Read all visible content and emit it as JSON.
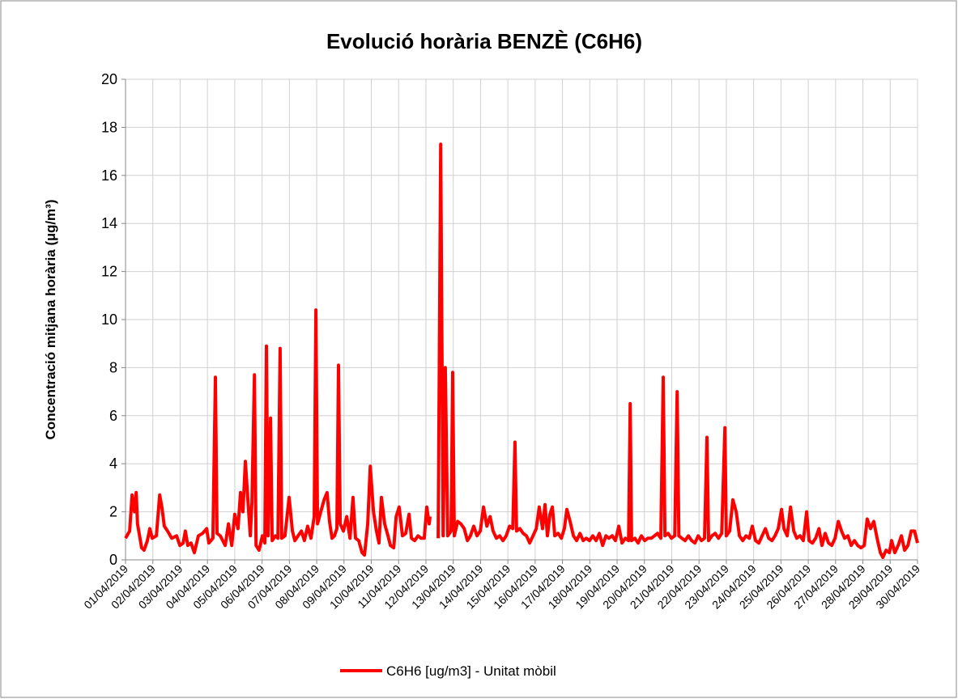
{
  "chart_data": {
    "type": "line",
    "title": "Evolució horària BENZÈ (C6H6)",
    "y_label": "Concentració mitjana horària (µg/m³)",
    "x": [
      1.0,
      1.15,
      1.24,
      1.33,
      1.39,
      1.44,
      1.59,
      1.68,
      1.8,
      1.89,
      1.98,
      2.13,
      2.25,
      2.33,
      2.42,
      2.54,
      2.69,
      2.87,
      2.99,
      3.11,
      3.19,
      3.28,
      3.4,
      3.52,
      3.67,
      3.82,
      3.97,
      4.05,
      4.2,
      4.29,
      4.35,
      4.47,
      4.65,
      4.77,
      4.89,
      5.0,
      5.12,
      5.21,
      5.3,
      5.39,
      5.48,
      5.57,
      5.63,
      5.72,
      5.78,
      5.89,
      6.01,
      6.1,
      6.16,
      6.22,
      6.31,
      6.37,
      6.49,
      6.58,
      6.66,
      6.72,
      6.84,
      6.99,
      7.11,
      7.2,
      7.32,
      7.44,
      7.55,
      7.67,
      7.79,
      7.91,
      7.97,
      8.03,
      8.15,
      8.27,
      8.38,
      8.47,
      8.56,
      8.65,
      8.74,
      8.8,
      8.86,
      8.98,
      9.1,
      9.22,
      9.33,
      9.42,
      9.54,
      9.66,
      9.75,
      9.87,
      9.96,
      10.08,
      10.19,
      10.28,
      10.37,
      10.49,
      10.61,
      10.7,
      10.82,
      10.91,
      11.02,
      11.14,
      11.26,
      11.38,
      11.47,
      11.59,
      11.71,
      11.82,
      11.94,
      12.03,
      12.12,
      12.15,
      12.4,
      12.45,
      12.54,
      12.63,
      12.71,
      12.8,
      12.92,
      12.98,
      13.04,
      13.16,
      13.28,
      13.4,
      13.52,
      13.63,
      13.75,
      13.87,
      13.99,
      14.11,
      14.23,
      14.35,
      14.46,
      14.58,
      14.7,
      14.82,
      14.94,
      15.06,
      15.18,
      15.26,
      15.32,
      15.44,
      15.56,
      15.68,
      15.8,
      15.92,
      16.04,
      16.15,
      16.27,
      16.36,
      16.45,
      16.54,
      16.63,
      16.72,
      16.84,
      16.96,
      17.07,
      17.16,
      17.28,
      17.4,
      17.52,
      17.64,
      17.76,
      17.87,
      17.99,
      18.11,
      18.23,
      18.35,
      18.47,
      18.59,
      18.7,
      18.82,
      18.94,
      19.06,
      19.18,
      19.3,
      19.42,
      19.48,
      19.53,
      19.65,
      19.77,
      19.89,
      20.01,
      20.13,
      20.25,
      20.37,
      20.48,
      20.6,
      20.69,
      20.75,
      20.87,
      20.99,
      21.11,
      21.2,
      21.26,
      21.37,
      21.49,
      21.61,
      21.73,
      21.85,
      21.97,
      22.09,
      22.2,
      22.29,
      22.35,
      22.47,
      22.59,
      22.71,
      22.83,
      22.95,
      23.0,
      23.12,
      23.24,
      23.36,
      23.48,
      23.6,
      23.72,
      23.84,
      23.95,
      24.07,
      24.19,
      24.31,
      24.43,
      24.55,
      24.67,
      24.78,
      24.9,
      25.02,
      25.11,
      25.23,
      25.35,
      25.47,
      25.58,
      25.7,
      25.82,
      25.94,
      26.03,
      26.15,
      26.27,
      26.39,
      26.5,
      26.62,
      26.74,
      26.86,
      26.98,
      27.1,
      27.22,
      27.33,
      27.45,
      27.57,
      27.69,
      27.81,
      27.93,
      28.05,
      28.16,
      28.28,
      28.4,
      28.52,
      28.64,
      28.73,
      28.85,
      28.97,
      29.05,
      29.17,
      29.29,
      29.41,
      29.53,
      29.65,
      29.77,
      29.89,
      30.0
    ],
    "series": [
      {
        "name": "C6H6 [ug/m3] - Unitat mòbil",
        "color": "#ff0000",
        "values": [
          0.9,
          1.2,
          2.7,
          2.0,
          2.8,
          1.5,
          0.5,
          0.4,
          0.8,
          1.3,
          0.9,
          1.0,
          2.7,
          2.2,
          1.4,
          1.2,
          0.9,
          1.0,
          0.6,
          0.7,
          1.2,
          0.6,
          0.7,
          0.3,
          1.0,
          1.1,
          1.3,
          0.7,
          0.9,
          7.6,
          1.1,
          1.0,
          0.6,
          1.5,
          0.6,
          1.9,
          1.3,
          2.8,
          2.0,
          4.1,
          2.5,
          1.0,
          2.4,
          7.7,
          0.6,
          0.4,
          1.0,
          0.7,
          8.9,
          1.0,
          5.9,
          0.8,
          1.0,
          0.9,
          8.8,
          0.9,
          1.0,
          2.6,
          1.2,
          0.8,
          1.0,
          1.2,
          0.8,
          1.4,
          0.9,
          1.8,
          10.4,
          1.5,
          2.0,
          2.5,
          2.8,
          1.6,
          0.9,
          1.0,
          1.3,
          8.1,
          1.5,
          1.2,
          1.8,
          0.9,
          2.6,
          0.9,
          0.8,
          0.3,
          0.2,
          1.5,
          3.9,
          2.0,
          1.2,
          0.7,
          2.6,
          1.5,
          1.0,
          0.6,
          0.5,
          1.8,
          2.2,
          1.0,
          1.1,
          1.9,
          0.9,
          0.8,
          1.0,
          0.9,
          0.9,
          2.2,
          1.5,
          1.8,
          null,
          0.9,
          17.3,
          1.0,
          8.0,
          1.0,
          1.2,
          7.8,
          1.0,
          1.6,
          1.5,
          1.3,
          0.8,
          1.0,
          1.4,
          1.0,
          1.2,
          2.2,
          1.4,
          1.8,
          1.2,
          0.9,
          1.0,
          0.8,
          1.0,
          1.4,
          1.3,
          4.9,
          1.2,
          1.3,
          1.1,
          1.0,
          0.7,
          1.0,
          1.3,
          2.2,
          1.3,
          2.3,
          1.0,
          1.9,
          2.2,
          1.0,
          1.1,
          0.9,
          1.3,
          2.1,
          1.6,
          1.0,
          0.8,
          1.1,
          0.8,
          0.9,
          0.8,
          1.0,
          0.8,
          1.1,
          0.6,
          1.0,
          0.9,
          1.0,
          0.8,
          1.4,
          0.7,
          0.9,
          0.8,
          6.5,
          0.8,
          0.9,
          0.7,
          1.0,
          0.8,
          0.9,
          0.9,
          1.0,
          1.1,
          0.9,
          7.6,
          1.0,
          1.1,
          0.9,
          1.0,
          7.0,
          1.0,
          0.9,
          0.8,
          1.0,
          0.8,
          0.7,
          1.0,
          0.8,
          0.9,
          5.1,
          0.8,
          1.0,
          1.1,
          0.9,
          1.1,
          5.5,
          1.0,
          1.2,
          2.5,
          2.0,
          1.0,
          0.8,
          1.0,
          0.9,
          1.4,
          0.8,
          0.7,
          1.0,
          1.3,
          0.9,
          0.8,
          1.0,
          1.3,
          2.1,
          1.3,
          1.0,
          2.2,
          1.2,
          0.9,
          1.0,
          0.8,
          2.0,
          0.8,
          0.7,
          0.9,
          1.3,
          0.6,
          1.1,
          0.7,
          0.6,
          0.9,
          1.6,
          1.2,
          0.9,
          1.0,
          0.6,
          0.8,
          0.6,
          0.5,
          0.6,
          1.7,
          1.3,
          1.6,
          0.9,
          0.3,
          0.1,
          0.4,
          0.3,
          0.8,
          0.3,
          0.6,
          1.0,
          0.4,
          0.6,
          1.2,
          1.2,
          0.7
        ]
      }
    ],
    "xlim": [
      1,
      30
    ],
    "xticks": [
      {
        "value": 1,
        "label": "01/04/2019"
      },
      {
        "value": 2,
        "label": "02/04/2019"
      },
      {
        "value": 3,
        "label": "03/04/2019"
      },
      {
        "value": 4,
        "label": "04/04/2019"
      },
      {
        "value": 5,
        "label": "05/04/2019"
      },
      {
        "value": 6,
        "label": "06/04/2019"
      },
      {
        "value": 7,
        "label": "07/04/2019"
      },
      {
        "value": 8,
        "label": "08/04/2019"
      },
      {
        "value": 9,
        "label": "09/04/2019"
      },
      {
        "value": 10,
        "label": "10/04/2019"
      },
      {
        "value": 11,
        "label": "11/04/2019"
      },
      {
        "value": 12,
        "label": "12/04/2019"
      },
      {
        "value": 13,
        "label": "13/04/2019"
      },
      {
        "value": 14,
        "label": "14/04/2019"
      },
      {
        "value": 15,
        "label": "15/04/2019"
      },
      {
        "value": 16,
        "label": "16/04/2019"
      },
      {
        "value": 17,
        "label": "17/04/2019"
      },
      {
        "value": 18,
        "label": "18/04/2019"
      },
      {
        "value": 19,
        "label": "19/04/2019"
      },
      {
        "value": 20,
        "label": "20/04/2019"
      },
      {
        "value": 21,
        "label": "21/04/2019"
      },
      {
        "value": 22,
        "label": "22/04/2019"
      },
      {
        "value": 23,
        "label": "23/04/2019"
      },
      {
        "value": 24,
        "label": "24/04/2019"
      },
      {
        "value": 25,
        "label": "25/04/2019"
      },
      {
        "value": 26,
        "label": "26/04/2019"
      },
      {
        "value": 27,
        "label": "27/04/2019"
      },
      {
        "value": 28,
        "label": "28/04/2019"
      },
      {
        "value": 29,
        "label": "29/04/2019"
      },
      {
        "value": 30,
        "label": "30/04/2019"
      }
    ],
    "ylim": [
      0,
      20
    ],
    "yticks": [
      0,
      2,
      4,
      6,
      8,
      10,
      12,
      14,
      16,
      18,
      20
    ],
    "grid": true,
    "legend": "bottom"
  }
}
